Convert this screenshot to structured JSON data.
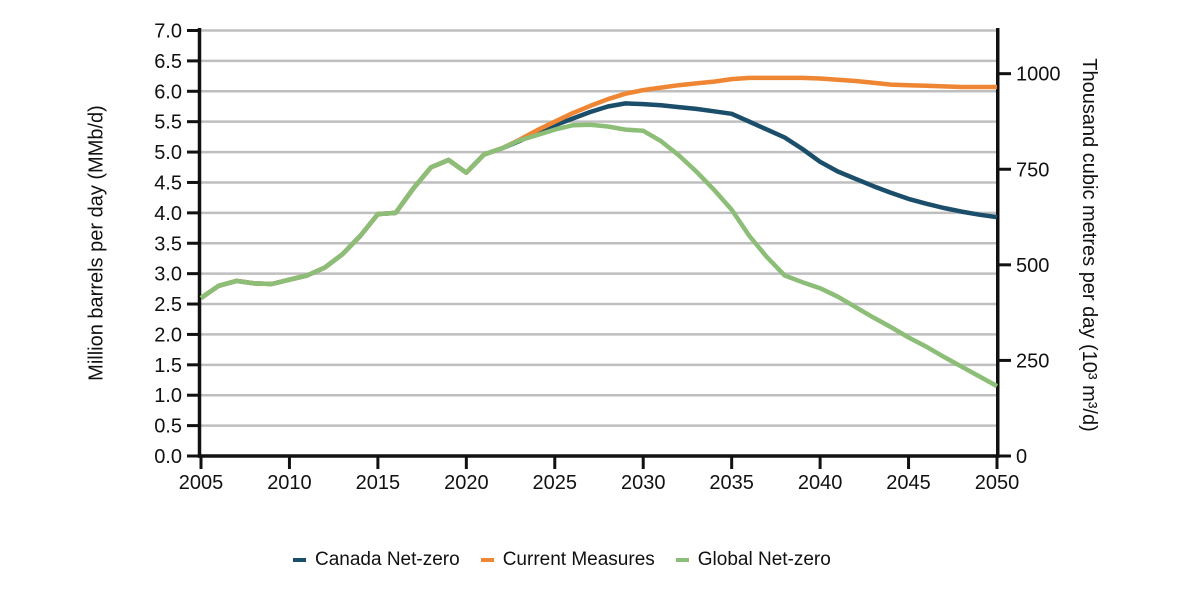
{
  "chart_data": {
    "type": "line",
    "title": "",
    "x": [
      2005,
      2006,
      2007,
      2008,
      2009,
      2010,
      2011,
      2012,
      2013,
      2014,
      2015,
      2016,
      2017,
      2018,
      2019,
      2020,
      2021,
      2022,
      2023,
      2024,
      2025,
      2026,
      2027,
      2028,
      2029,
      2030,
      2031,
      2032,
      2033,
      2034,
      2035,
      2036,
      2037,
      2038,
      2039,
      2040,
      2041,
      2042,
      2043,
      2044,
      2045,
      2046,
      2047,
      2048,
      2049,
      2050
    ],
    "series": [
      {
        "name": "Canada Net-zero",
        "color": "#1B4E6B",
        "values": [
          2.6,
          2.8,
          2.88,
          2.84,
          2.83,
          2.9,
          2.97,
          3.1,
          3.32,
          3.62,
          3.98,
          4.0,
          4.4,
          4.75,
          4.87,
          4.66,
          4.96,
          5.06,
          5.18,
          5.32,
          5.44,
          5.55,
          5.66,
          5.75,
          5.8,
          5.79,
          5.77,
          5.74,
          5.71,
          5.67,
          5.63,
          5.5,
          5.37,
          5.24,
          5.05,
          4.84,
          4.68,
          4.56,
          4.44,
          4.33,
          4.23,
          4.15,
          4.08,
          4.02,
          3.97,
          3.93
        ]
      },
      {
        "name": "Current Measures",
        "color": "#EF8633",
        "values": [
          2.6,
          2.8,
          2.88,
          2.84,
          2.83,
          2.9,
          2.97,
          3.1,
          3.32,
          3.62,
          3.98,
          4.0,
          4.4,
          4.75,
          4.87,
          4.66,
          4.96,
          5.06,
          5.2,
          5.36,
          5.5,
          5.64,
          5.76,
          5.87,
          5.96,
          6.02,
          6.06,
          6.1,
          6.13,
          6.16,
          6.2,
          6.22,
          6.22,
          6.22,
          6.22,
          6.21,
          6.19,
          6.17,
          6.14,
          6.11,
          6.1,
          6.09,
          6.08,
          6.07,
          6.07,
          6.07
        ]
      },
      {
        "name": "Global Net-zero",
        "color": "#8CBE78",
        "values": [
          2.6,
          2.8,
          2.88,
          2.84,
          2.83,
          2.9,
          2.97,
          3.1,
          3.32,
          3.62,
          3.98,
          4.0,
          4.4,
          4.75,
          4.87,
          4.66,
          4.96,
          5.06,
          5.19,
          5.28,
          5.37,
          5.44,
          5.45,
          5.42,
          5.37,
          5.35,
          5.18,
          4.95,
          4.68,
          4.38,
          4.05,
          3.62,
          3.27,
          2.97,
          2.86,
          2.76,
          2.62,
          2.45,
          2.28,
          2.12,
          1.95,
          1.8,
          1.63,
          1.47,
          1.31,
          1.15
        ]
      }
    ],
    "left_axis": {
      "label": "Million barrels per day (MMb/d)",
      "min": 0.0,
      "max": 7.0,
      "tick_step": 0.5,
      "tick_labels": [
        "0.0",
        "0.5",
        "1.0",
        "1.5",
        "2.0",
        "2.5",
        "3.0",
        "3.5",
        "4.0",
        "4.5",
        "5.0",
        "5.5",
        "6.0",
        "6.5",
        "7.0"
      ]
    },
    "right_axis": {
      "label": "Thousand cubic metres per day (10³ m³/d)",
      "ticks": [
        0,
        250,
        500,
        750,
        1000
      ],
      "tick_labels": [
        "0",
        "250",
        "500",
        "750",
        "1000"
      ],
      "mmbd_per_unit": 0.0062898
    },
    "x_axis": {
      "ticks": [
        2005,
        2010,
        2015,
        2020,
        2025,
        2030,
        2035,
        2040,
        2045,
        2050
      ],
      "min": 2005,
      "max": 2050
    },
    "grid": "horizontal",
    "grid_color": "#BFBFBF",
    "axis_color": "#111111",
    "legend_position": "bottom"
  }
}
